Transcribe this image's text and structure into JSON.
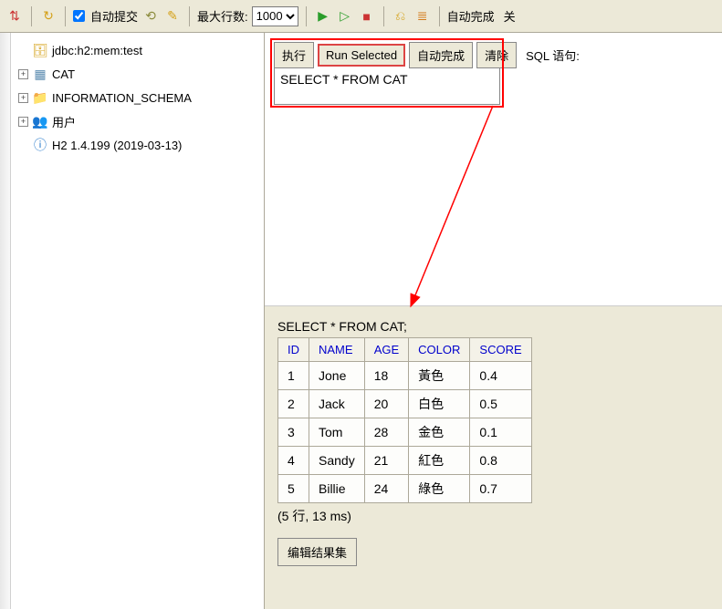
{
  "toolbar": {
    "auto_commit_label": "自动提交",
    "max_rows_label": "最大行数:",
    "max_rows_value": "1000",
    "auto_complete_label": "自动完成",
    "cutoff_label": "关"
  },
  "sidebar": {
    "connection": "jdbc:h2:mem:test",
    "items": [
      {
        "label": "CAT",
        "icon": "table"
      },
      {
        "label": "INFORMATION_SCHEMA",
        "icon": "folder"
      },
      {
        "label": "用户",
        "icon": "users"
      }
    ],
    "version": "H2 1.4.199 (2019-03-13)"
  },
  "query": {
    "buttons": {
      "run": "执行",
      "run_selected": "Run Selected",
      "auto_complete": "自动完成",
      "clear": "清除"
    },
    "sql_label": "SQL 语句:",
    "sql_text": "SELECT * FROM CAT"
  },
  "result": {
    "echo_sql": "SELECT * FROM CAT;",
    "columns": [
      "ID",
      "NAME",
      "AGE",
      "COLOR",
      "SCORE"
    ],
    "rows": [
      [
        "1",
        "Jone",
        "18",
        "黃色",
        "0.4"
      ],
      [
        "2",
        "Jack",
        "20",
        "白色",
        "0.5"
      ],
      [
        "3",
        "Tom",
        "28",
        "金色",
        "0.1"
      ],
      [
        "4",
        "Sandy",
        "21",
        "紅色",
        "0.8"
      ],
      [
        "5",
        "Billie",
        "24",
        "綠色",
        "0.7"
      ]
    ],
    "summary": "(5 行, 13 ms)",
    "edit_button": "编辑结果集"
  },
  "colors": {
    "toolbar_bg": "#ece9d8",
    "border": "#aca899",
    "link": "#0000cc",
    "highlight": "#f00"
  }
}
